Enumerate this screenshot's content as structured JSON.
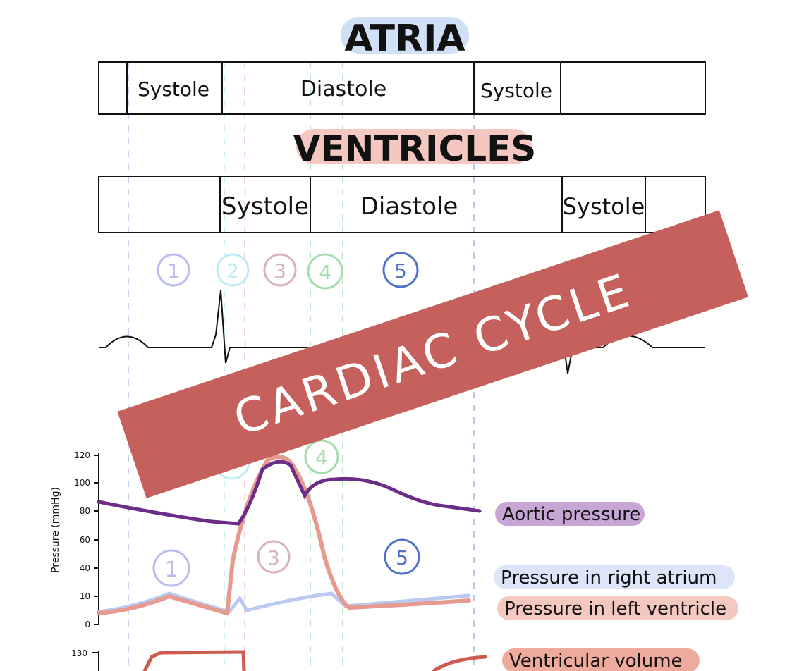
{
  "atria": {
    "title": "ATRIA",
    "segments": [
      "Systole",
      "Diastole",
      "Systole"
    ]
  },
  "ventricles": {
    "title": "VENTRICLES",
    "segments": [
      "Systole",
      "Diastole",
      "Systole"
    ]
  },
  "phases": [
    "1",
    "2",
    "3",
    "4",
    "5"
  ],
  "banner": {
    "text": "CARDIAC CYCLE"
  },
  "graph": {
    "y_axis_label": "Pressure (mmHg)",
    "y_ticks": [
      "120",
      "100",
      "80",
      "60",
      "40",
      "10",
      "0"
    ],
    "volume_tick": "130",
    "legend": [
      "Aortic pressure",
      "Pressure in right atrium",
      "Pressure in left ventricle",
      "Ventricular volume"
    ]
  },
  "colors": {
    "atria_highlight": "#cfe0f7",
    "ventricle_highlight": "#f4c7c0",
    "banner": "#c5605c",
    "aortic": "#6b2d87",
    "aortic_label_bg": "#c7a6d6",
    "right_atrium": "#b9c9f2",
    "right_atrium_label_bg": "#dde6f8",
    "left_ventricle": "#e79a90",
    "left_ventricle_label_bg": "#f4c7c0",
    "volume": "#cf5a4f",
    "volume_label_bg": "#eeaa9c",
    "phase1": "#b9bdee",
    "phase2": "#bdebf6",
    "phase3": "#d8b2c4",
    "phase4": "#a6dcae",
    "phase5": "#4f73c7"
  }
}
